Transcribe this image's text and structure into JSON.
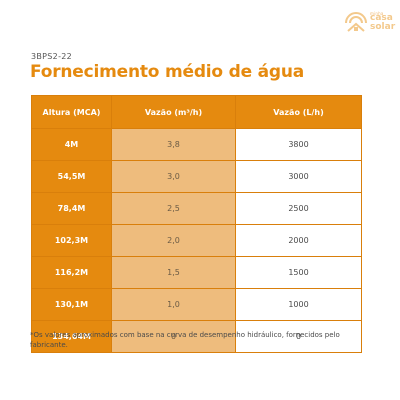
{
  "brand": {
    "prefix": "minha",
    "line1": "casa",
    "line2": "solar",
    "color": "#f3c98c"
  },
  "doc": {
    "code": "3BPS2-22",
    "title": "Fornecimento médio de água",
    "note": "*Os valores aproximados com base na curva de desempenho hidráulico, fornecidos pelo fabricante."
  },
  "table": {
    "headers": [
      "Altura (MCA)",
      "Vazão (m³/h)",
      "Vazão (L/h)"
    ],
    "rows": [
      [
        "4M",
        "3,8",
        "3800"
      ],
      [
        "54,5M",
        "3,0",
        "3000"
      ],
      [
        "78,4M",
        "2,5",
        "2500"
      ],
      [
        "102,3M",
        "2,0",
        "2000"
      ],
      [
        "116,2M",
        "1,5",
        "1500"
      ],
      [
        "130,1M",
        "1,0",
        "1000"
      ],
      [
        "134,64M",
        "0",
        "0"
      ]
    ]
  },
  "colors": {
    "accent": "#e58a0f",
    "light_accent": "#eebc7d",
    "text": "#4a4a4a"
  }
}
